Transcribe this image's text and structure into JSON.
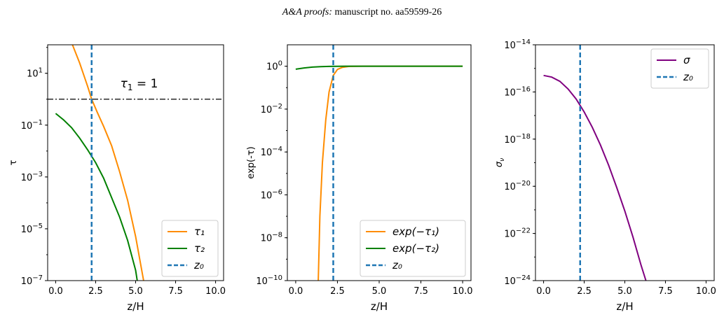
{
  "header": {
    "journal": "A&A proofs:",
    "manuscript": " manuscript no. aa59599-26"
  },
  "colors": {
    "orange": "#ff8c00",
    "green": "#008000",
    "blue_dashed": "#1f77b4",
    "purple": "#800080",
    "hline": "#000000"
  },
  "chart_data": [
    {
      "type": "line",
      "yscale": "log",
      "xlabel": "z/H",
      "ylabel": "τ",
      "xlim": [
        -0.5,
        10.5
      ],
      "ylim_exp": [
        -7,
        2.1
      ],
      "xticks": [
        "0.0",
        "2.5",
        "5.0",
        "7.5",
        "10.0"
      ],
      "yticks_exp": [
        "1",
        "-1",
        "-3",
        "-5",
        "-7"
      ],
      "annotation": "τ₁ = 1",
      "hline_value": 1,
      "vline_value": 2.25,
      "legend_loc": "lower right",
      "legend": [
        "τ₁",
        "τ₂",
        "z₀"
      ],
      "series": [
        {
          "name": "τ₁",
          "color": "orange",
          "x": [
            1.05,
            1.5,
            2.0,
            2.25,
            2.6,
            3.0,
            3.5,
            4.0,
            4.5,
            5.0,
            5.5
          ],
          "log10y": [
            2.1,
            1.4,
            0.5,
            0.0,
            -0.5,
            -1.05,
            -1.8,
            -2.8,
            -3.9,
            -5.3,
            -7.0
          ]
        },
        {
          "name": "τ₂",
          "color": "green",
          "x": [
            0.0,
            0.5,
            1.0,
            1.5,
            2.0,
            2.5,
            3.0,
            3.5,
            4.0,
            4.5,
            5.0,
            5.1
          ],
          "log10y": [
            -0.55,
            -0.8,
            -1.1,
            -1.5,
            -1.95,
            -2.45,
            -3.05,
            -3.8,
            -4.55,
            -5.45,
            -6.6,
            -7.0
          ]
        }
      ]
    },
    {
      "type": "line",
      "yscale": "log",
      "xlabel": "z/H",
      "ylabel": "exp(-τ)",
      "xlim": [
        -0.5,
        10.5
      ],
      "ylim_exp": [
        -10,
        1
      ],
      "xticks": [
        "0.0",
        "2.5",
        "5.0",
        "7.5",
        "10.0"
      ],
      "yticks_exp": [
        "0",
        "-2",
        "-4",
        "-6",
        "-8",
        "-10"
      ],
      "vline_value": 2.25,
      "legend_loc": "lower right",
      "legend": [
        "exp(−τ₁)",
        "exp(−τ₂)",
        "z₀"
      ],
      "series": [
        {
          "name": "exp(−τ₁)",
          "color": "orange",
          "x": [
            1.35,
            1.45,
            1.6,
            1.8,
            2.0,
            2.25,
            2.5,
            2.8,
            3.2,
            4.0,
            10.0
          ],
          "log10y": [
            -10.0,
            -7.0,
            -4.5,
            -2.5,
            -1.2,
            -0.43,
            -0.15,
            -0.05,
            -0.01,
            0.0,
            0.0
          ]
        },
        {
          "name": "exp(−τ₂)",
          "color": "green",
          "x": [
            0.0,
            0.5,
            1.0,
            1.5,
            2.0,
            3.0,
            4.0,
            10.0
          ],
          "log10y": [
            -0.14,
            -0.08,
            -0.04,
            -0.02,
            -0.01,
            0.0,
            0.0,
            0.0
          ]
        }
      ]
    },
    {
      "type": "line",
      "yscale": "log",
      "xlabel": "z/H",
      "ylabel": "σ_ν",
      "xlim": [
        -0.5,
        10.5
      ],
      "ylim_exp": [
        -24,
        -14
      ],
      "xticks": [
        "0.0",
        "2.5",
        "5.0",
        "7.5",
        "10.0"
      ],
      "yticks_exp": [
        "-14",
        "-16",
        "-18",
        "-20",
        "-22",
        "-24"
      ],
      "vline_value": 2.25,
      "legend_loc": "upper right",
      "legend": [
        "σ",
        "z₀"
      ],
      "series": [
        {
          "name": "σ",
          "color": "purple",
          "x": [
            0.0,
            0.5,
            1.0,
            1.5,
            2.0,
            2.5,
            3.0,
            3.5,
            4.0,
            4.5,
            5.0,
            5.5,
            6.0,
            6.3
          ],
          "log10y": [
            -15.3,
            -15.37,
            -15.55,
            -15.87,
            -16.3,
            -16.85,
            -17.5,
            -18.25,
            -19.1,
            -20.05,
            -21.05,
            -22.15,
            -23.35,
            -24.0
          ]
        }
      ]
    }
  ]
}
